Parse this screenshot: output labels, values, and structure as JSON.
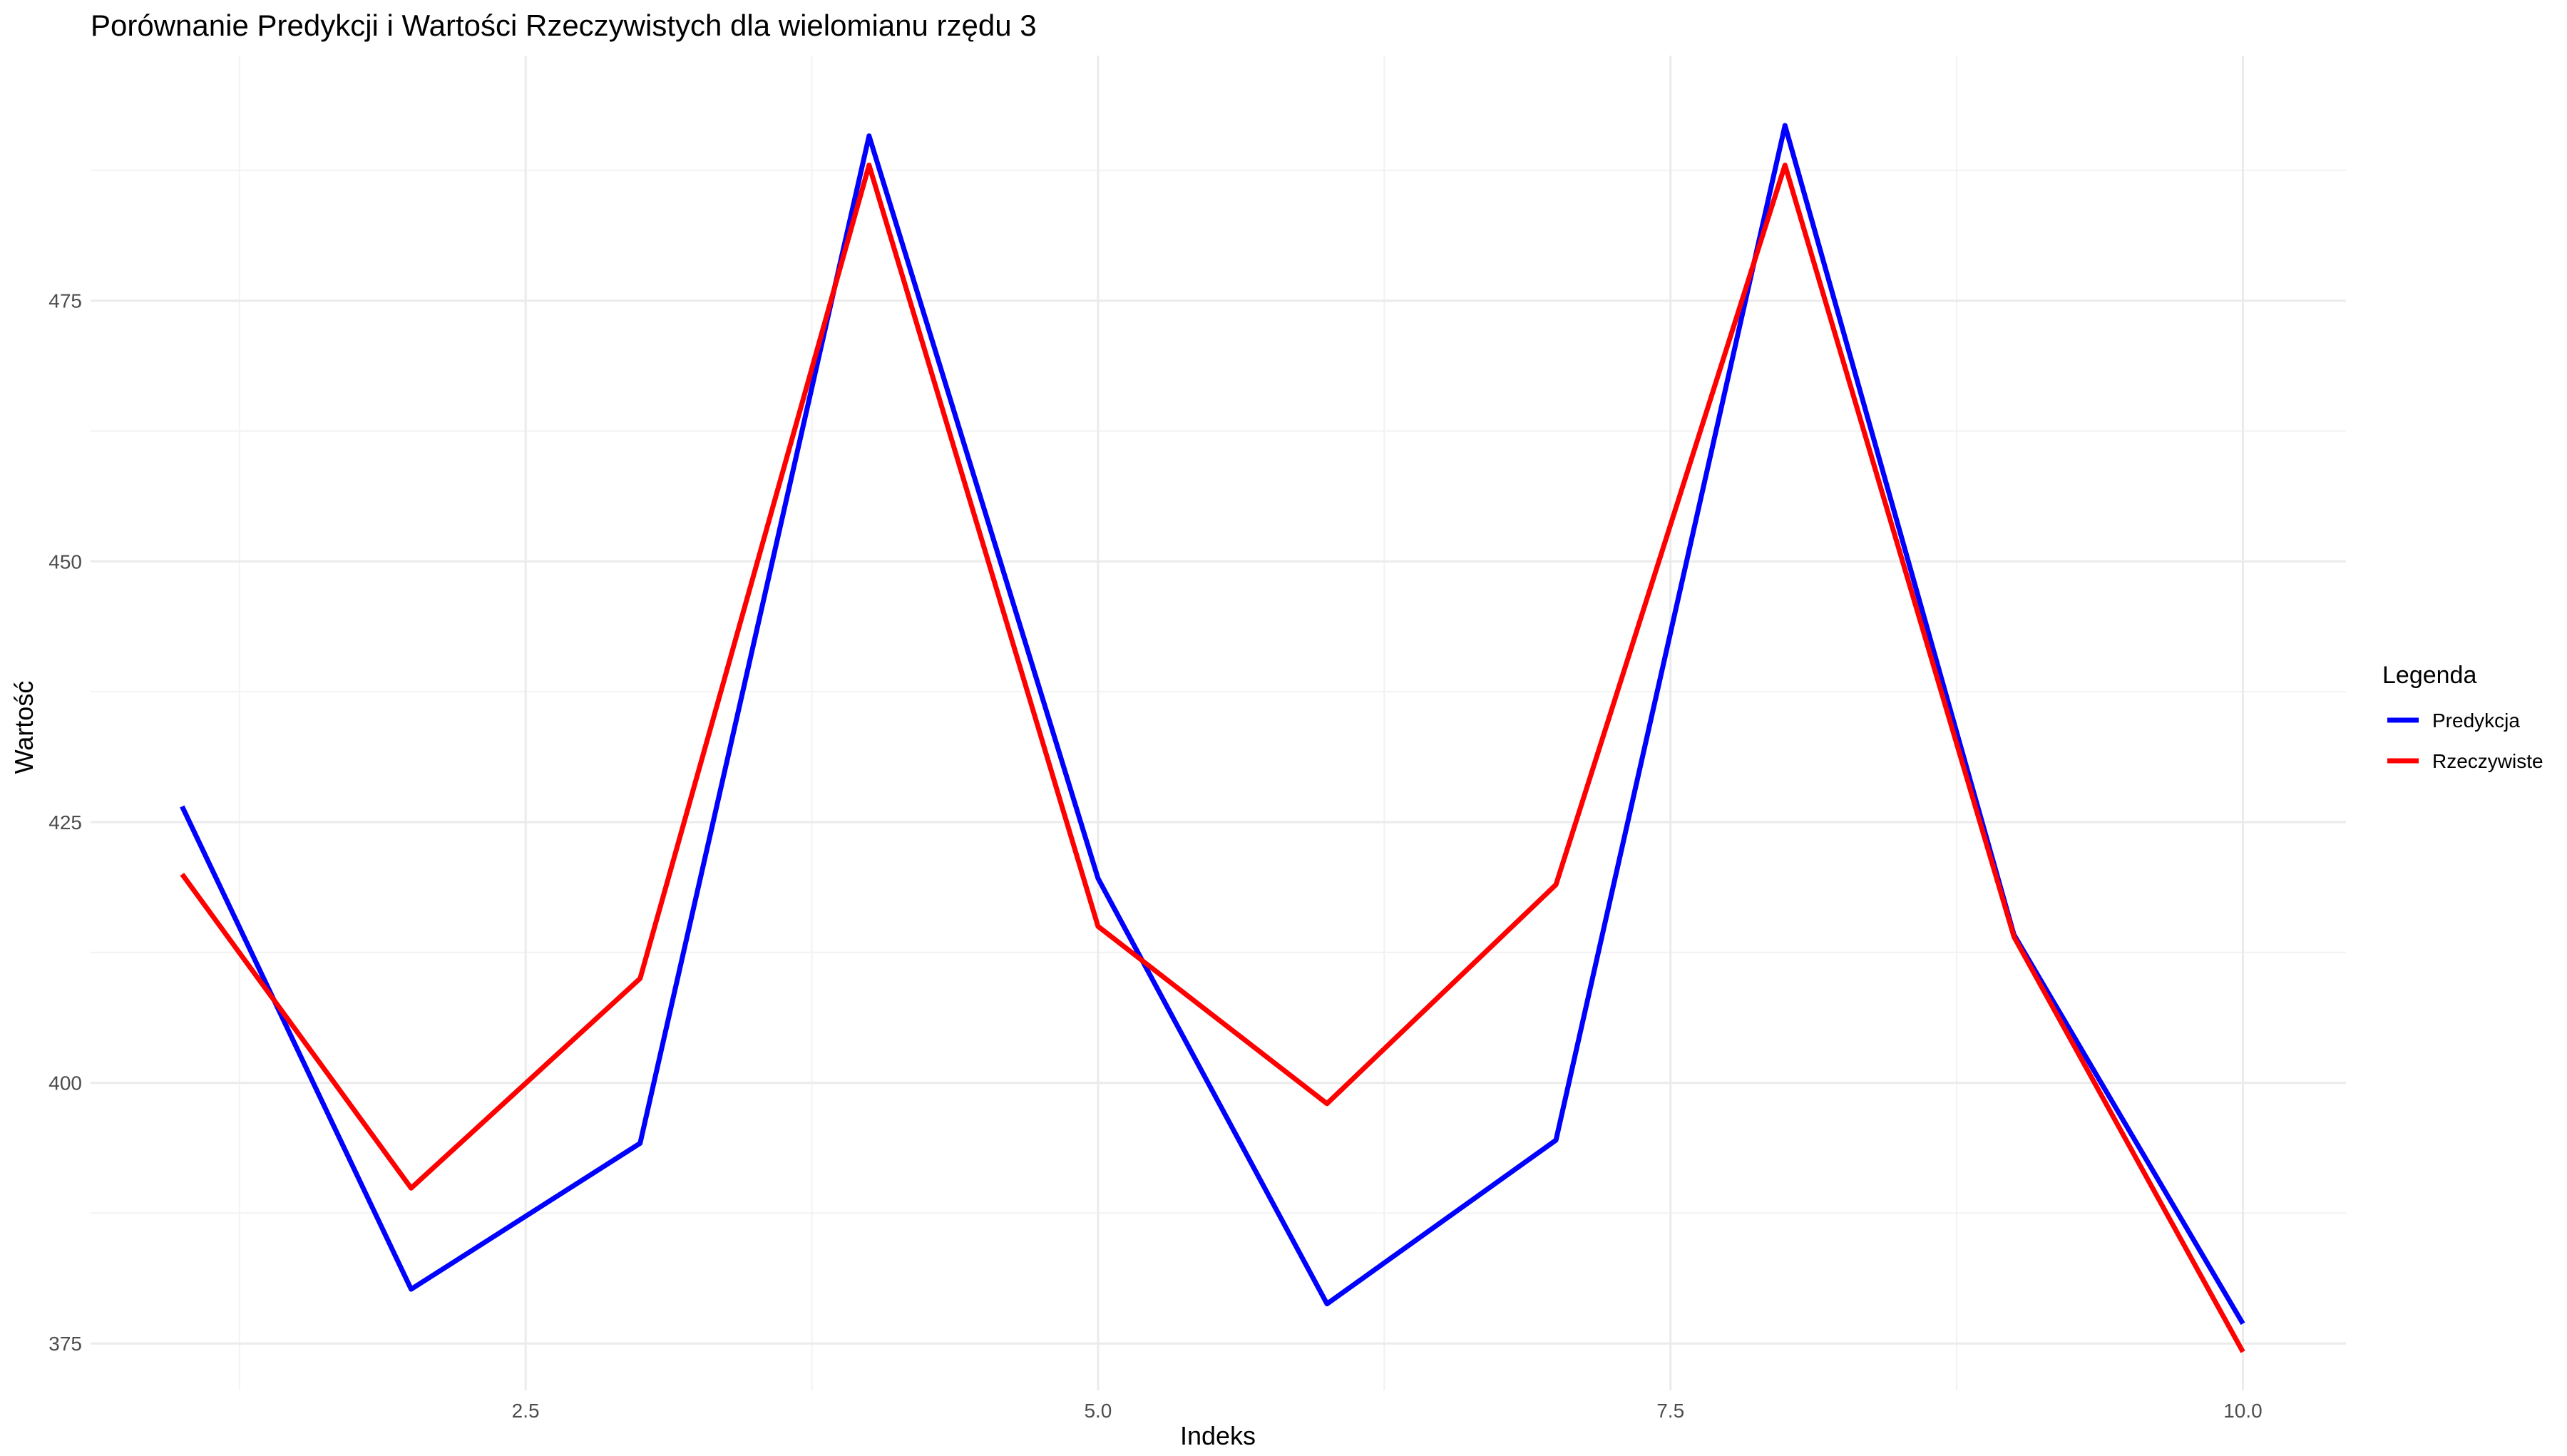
{
  "chart_data": {
    "type": "line",
    "title": "Porównanie Predykcji i Wartości Rzeczywistych dla wielomianu rzędu 3",
    "xlabel": "Indeks",
    "ylabel": "Wartość",
    "x": [
      1,
      2,
      3,
      4,
      5,
      6,
      7,
      8,
      9,
      10
    ],
    "xlim": [
      0.6,
      10.45
    ],
    "ylim": [
      370.5,
      498.5
    ],
    "x_ticks": [
      2.5,
      5.0,
      7.5,
      10.0
    ],
    "x_tick_labels": [
      "2.5",
      "5.0",
      "7.5",
      "10.0"
    ],
    "y_ticks": [
      375,
      400,
      425,
      450,
      475
    ],
    "y_tick_labels": [
      "375",
      "400",
      "425",
      "450",
      "475"
    ],
    "grid": true,
    "legend": {
      "title": "Legenda",
      "placement": "right"
    },
    "series": [
      {
        "name": "Predykcja",
        "color": "#0000ff",
        "values": [
          426.5,
          380.2,
          394.2,
          490.8,
          419.6,
          378.8,
          394.5,
          491.8,
          414.2,
          376.9
        ]
      },
      {
        "name": "Rzeczywiste",
        "color": "#ff0000",
        "values": [
          420.0,
          389.9,
          410.0,
          488.0,
          415.0,
          398.0,
          419.0,
          488.0,
          414.0,
          374.2
        ]
      }
    ]
  }
}
